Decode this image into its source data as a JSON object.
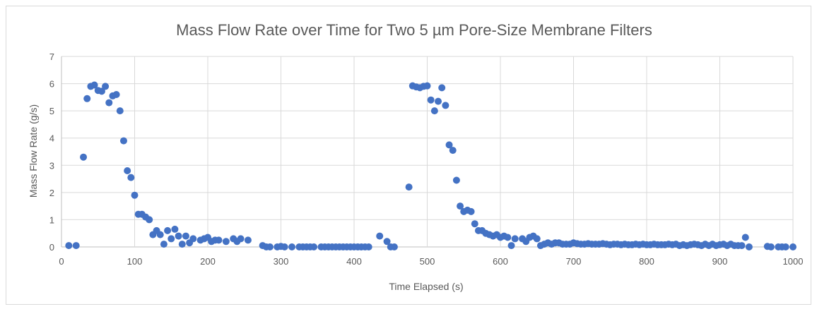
{
  "chart_data": {
    "type": "scatter",
    "title": "Mass Flow Rate over Time for Two 5 µm Pore-Size Membrane Filters",
    "xlabel": "Time Elapsed (s)",
    "ylabel": "Mass Flow Rate (g/s)",
    "xlim": [
      0,
      1000
    ],
    "ylim": [
      0,
      7
    ],
    "xticks": [
      "0",
      "100",
      "200",
      "300",
      "400",
      "500",
      "600",
      "700",
      "800",
      "900",
      "1000"
    ],
    "yticks": [
      "0",
      "1",
      "2",
      "3",
      "4",
      "5",
      "6",
      "7"
    ],
    "grid": true,
    "legend": "none",
    "color": "#4472c4",
    "series": [
      {
        "x": [
          10,
          20,
          30,
          35,
          40,
          45,
          50,
          55,
          60,
          65,
          70,
          75,
          80,
          85,
          90,
          95,
          100,
          105,
          110,
          115,
          120,
          125,
          130,
          135,
          140,
          145,
          150,
          155,
          160,
          165,
          170,
          175,
          180,
          190,
          195,
          200,
          205,
          210,
          215,
          225,
          235,
          240,
          245,
          255,
          275,
          280,
          285,
          295,
          300,
          305,
          315,
          325,
          330,
          335,
          340,
          345,
          355,
          360,
          365,
          370,
          375,
          380,
          385,
          390,
          395,
          400,
          405,
          410,
          415,
          420,
          435,
          445,
          450,
          455,
          475,
          480,
          485,
          490,
          495,
          500,
          505,
          510,
          515,
          520,
          525,
          530,
          535,
          540,
          545,
          550,
          555,
          560,
          565,
          570,
          575,
          580,
          585,
          590,
          595,
          600,
          605,
          610,
          615,
          620,
          630,
          635,
          640,
          645,
          650,
          655,
          660,
          665,
          670,
          675,
          680,
          685,
          690,
          695,
          700,
          705,
          710,
          715,
          720,
          725,
          730,
          735,
          740,
          745,
          750,
          755,
          760,
          765,
          770,
          775,
          780,
          785,
          790,
          795,
          800,
          805,
          810,
          815,
          820,
          825,
          830,
          835,
          840,
          845,
          850,
          855,
          860,
          865,
          870,
          875,
          880,
          885,
          890,
          895,
          900,
          905,
          910,
          915,
          920,
          925,
          930,
          935,
          940,
          965,
          970,
          980,
          985,
          990,
          1000
        ],
        "y": [
          0.05,
          0.05,
          3.3,
          5.45,
          5.9,
          5.95,
          5.75,
          5.72,
          5.9,
          5.3,
          5.55,
          5.6,
          5.0,
          3.9,
          2.8,
          2.55,
          1.9,
          1.2,
          1.2,
          1.1,
          1.0,
          0.45,
          0.6,
          0.45,
          0.1,
          0.6,
          0.3,
          0.65,
          0.4,
          0.1,
          0.4,
          0.15,
          0.3,
          0.25,
          0.3,
          0.35,
          0.2,
          0.25,
          0.25,
          0.2,
          0.3,
          0.2,
          0.3,
          0.25,
          0.05,
          0.0,
          0.0,
          0.0,
          0.02,
          0.0,
          0.0,
          0.0,
          0.0,
          0.0,
          0.0,
          0.0,
          0.0,
          0.0,
          0.0,
          0.0,
          0.0,
          0.0,
          0.0,
          0.0,
          0.0,
          0.0,
          0.0,
          0.0,
          0.0,
          0.0,
          0.4,
          0.2,
          0.0,
          0.0,
          2.2,
          5.92,
          5.88,
          5.85,
          5.9,
          5.92,
          5.4,
          5.0,
          5.35,
          5.85,
          5.2,
          3.75,
          3.55,
          2.45,
          1.5,
          1.3,
          1.35,
          1.3,
          0.85,
          0.6,
          0.6,
          0.5,
          0.45,
          0.4,
          0.45,
          0.35,
          0.4,
          0.35,
          0.05,
          0.3,
          0.3,
          0.2,
          0.35,
          0.4,
          0.3,
          0.05,
          0.1,
          0.15,
          0.1,
          0.15,
          0.15,
          0.1,
          0.1,
          0.1,
          0.15,
          0.12,
          0.1,
          0.1,
          0.12,
          0.1,
          0.1,
          0.1,
          0.12,
          0.1,
          0.08,
          0.1,
          0.1,
          0.08,
          0.1,
          0.08,
          0.08,
          0.1,
          0.08,
          0.1,
          0.08,
          0.08,
          0.1,
          0.08,
          0.08,
          0.08,
          0.1,
          0.08,
          0.1,
          0.05,
          0.08,
          0.05,
          0.08,
          0.1,
          0.08,
          0.05,
          0.1,
          0.05,
          0.1,
          0.05,
          0.08,
          0.1,
          0.05,
          0.1,
          0.05,
          0.05,
          0.05,
          0.35,
          0.0,
          0.02,
          0.0,
          0.0,
          0.0,
          0.0,
          0.0
        ]
      }
    ]
  }
}
